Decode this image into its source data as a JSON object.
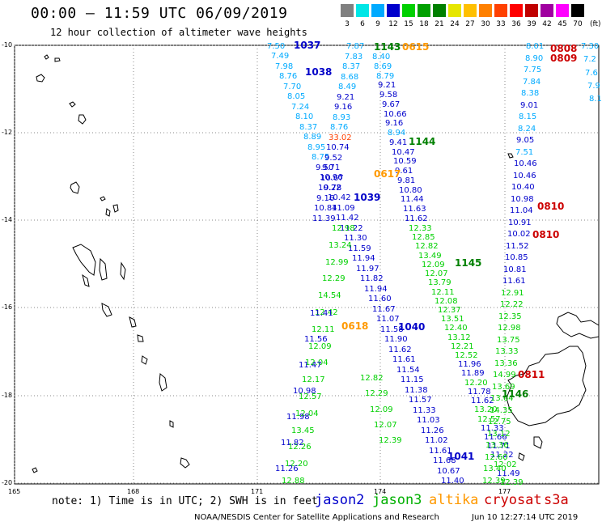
{
  "header": {
    "title": "00:00 – 11:59 UTC 06/09/2019",
    "subtitle": "12 hour collection of altimeter wave heights"
  },
  "scale": {
    "units": "(ft)",
    "bins": [
      {
        "label": "3",
        "color": "#808080"
      },
      {
        "label": "6",
        "color": "#00e6e6"
      },
      {
        "label": "9",
        "color": "#00aaff"
      },
      {
        "label": "12",
        "color": "#0000cc"
      },
      {
        "label": "15",
        "color": "#00d000"
      },
      {
        "label": "18",
        "color": "#00a000"
      },
      {
        "label": "21",
        "color": "#008000"
      },
      {
        "label": "24",
        "color": "#e6e600"
      },
      {
        "label": "27",
        "color": "#ffc000"
      },
      {
        "label": "30",
        "color": "#ff8000"
      },
      {
        "label": "33",
        "color": "#ff4000"
      },
      {
        "label": "36",
        "color": "#ff0000"
      },
      {
        "label": "39",
        "color": "#c00000"
      },
      {
        "label": "42",
        "color": "#a000a0"
      },
      {
        "label": "45",
        "color": "#ff00ff"
      },
      {
        "label": "70",
        "color": "#000000"
      }
    ]
  },
  "map": {
    "lat_labels": [
      "-10",
      "-12",
      "-14",
      "-16",
      "-18",
      "-20"
    ],
    "lon_labels": [
      "165",
      "168",
      "171",
      "174",
      "177"
    ],
    "grid": true,
    "pass_labels": [
      {
        "text": "1037",
        "color": "#0000c8"
      },
      {
        "text": "1038",
        "color": "#0000c8"
      },
      {
        "text": "1143",
        "color": "#008000"
      },
      {
        "text": "0615",
        "color": "#ff9900"
      },
      {
        "text": "1144",
        "color": "#008000"
      },
      {
        "text": "0617",
        "color": "#ff9900"
      },
      {
        "text": "1039",
        "color": "#0000c8"
      },
      {
        "text": "1145",
        "color": "#008000"
      },
      {
        "text": "0618",
        "color": "#ff9900"
      },
      {
        "text": "1040",
        "color": "#0000c8"
      },
      {
        "text": "1041",
        "color": "#0000c8"
      },
      {
        "text": "1146",
        "color": "#008000"
      },
      {
        "text": "0808",
        "color": "#cc0000"
      },
      {
        "text": "0809",
        "color": "#cc0000"
      },
      {
        "text": "0810",
        "color": "#cc0000"
      },
      {
        "text": "0810",
        "color": "#cc0000"
      },
      {
        "text": "0811",
        "color": "#cc0000"
      }
    ],
    "track_a": [
      {
        "v": "7.50",
        "c": "#00aaff"
      },
      {
        "v": "7.49",
        "c": "#00aaff"
      },
      {
        "v": "7.98",
        "c": "#00aaff"
      },
      {
        "v": "8.76",
        "c": "#00aaff"
      },
      {
        "v": "7.70",
        "c": "#00aaff"
      },
      {
        "v": "8.05",
        "c": "#00aaff"
      },
      {
        "v": "7.24",
        "c": "#00aaff"
      },
      {
        "v": "8.10",
        "c": "#00aaff"
      },
      {
        "v": "8.37",
        "c": "#00aaff"
      },
      {
        "v": "8.89",
        "c": "#00aaff"
      },
      {
        "v": "8.95",
        "c": "#00aaff"
      },
      {
        "v": "8.75",
        "c": "#00aaff"
      },
      {
        "v": "9.50",
        "c": "#0000cc"
      },
      {
        "v": "10.96",
        "c": "#0000cc"
      },
      {
        "v": "9.78",
        "c": "#0000cc"
      },
      {
        "v": "10.42",
        "c": "#0000cc"
      },
      {
        "v": "11.09",
        "c": "#0000cc"
      },
      {
        "v": "11.42",
        "c": "#0000cc"
      },
      {
        "v": "11.22",
        "c": "#0000cc"
      },
      {
        "v": "11.30",
        "c": "#0000cc"
      },
      {
        "v": "11.59",
        "c": "#0000cc"
      },
      {
        "v": "11.94",
        "c": "#0000cc"
      },
      {
        "v": "11.97",
        "c": "#0000cc"
      },
      {
        "v": "11.82",
        "c": "#0000cc"
      },
      {
        "v": "11.94",
        "c": "#0000cc"
      },
      {
        "v": "11.60",
        "c": "#0000cc"
      },
      {
        "v": "11.67",
        "c": "#0000cc"
      },
      {
        "v": "11.07",
        "c": "#0000cc"
      },
      {
        "v": "11.58",
        "c": "#0000cc"
      },
      {
        "v": "11.90",
        "c": "#0000cc"
      },
      {
        "v": "11.62",
        "c": "#0000cc"
      },
      {
        "v": "11.61",
        "c": "#0000cc"
      },
      {
        "v": "11.54",
        "c": "#0000cc"
      },
      {
        "v": "11.15",
        "c": "#0000cc"
      },
      {
        "v": "11.38",
        "c": "#0000cc"
      },
      {
        "v": "11.57",
        "c": "#0000cc"
      },
      {
        "v": "11.33",
        "c": "#0000cc"
      },
      {
        "v": "11.03",
        "c": "#0000cc"
      },
      {
        "v": "11.26",
        "c": "#0000cc"
      },
      {
        "v": "11.02",
        "c": "#0000cc"
      },
      {
        "v": "11.61",
        "c": "#0000cc"
      },
      {
        "v": "11.68",
        "c": "#0000cc"
      },
      {
        "v": "10.67",
        "c": "#0000cc"
      },
      {
        "v": "11.40",
        "c": "#0000cc"
      }
    ],
    "track_b": [
      {
        "v": "7.87",
        "c": "#00aaff"
      },
      {
        "v": "7.83",
        "c": "#00aaff"
      },
      {
        "v": "8.37",
        "c": "#00aaff"
      },
      {
        "v": "8.68",
        "c": "#00aaff"
      },
      {
        "v": "8.49",
        "c": "#00aaff"
      },
      {
        "v": "9.21",
        "c": "#0000cc"
      },
      {
        "v": "9.16",
        "c": "#0000cc"
      },
      {
        "v": "8.93",
        "c": "#00aaff"
      },
      {
        "v": "8.76",
        "c": "#00aaff"
      },
      {
        "v": "33.02",
        "c": "#ff4000"
      },
      {
        "v": "10.74",
        "c": "#0000cc"
      },
      {
        "v": "9.52",
        "c": "#0000cc"
      },
      {
        "v": "9.71",
        "c": "#0000cc"
      },
      {
        "v": "10.67",
        "c": "#0000cc"
      },
      {
        "v": "10.22",
        "c": "#0000cc"
      },
      {
        "v": "9.16",
        "c": "#0000cc"
      },
      {
        "v": "10.84",
        "c": "#0000cc"
      },
      {
        "v": "11.39",
        "c": "#0000cc"
      }
    ],
    "track_c": [
      {
        "v": "8.40",
        "c": "#00aaff"
      },
      {
        "v": "8.69",
        "c": "#00aaff"
      },
      {
        "v": "8.79",
        "c": "#00aaff"
      },
      {
        "v": "9.21",
        "c": "#0000cc"
      },
      {
        "v": "9.58",
        "c": "#0000cc"
      },
      {
        "v": "9.67",
        "c": "#0000cc"
      },
      {
        "v": "10.66",
        "c": "#0000cc"
      },
      {
        "v": "9.16",
        "c": "#0000cc"
      },
      {
        "v": "8.94",
        "c": "#00aaff"
      },
      {
        "v": "9.41",
        "c": "#0000cc"
      },
      {
        "v": "10.47",
        "c": "#0000cc"
      },
      {
        "v": "10.59",
        "c": "#0000cc"
      },
      {
        "v": "9.61",
        "c": "#0000cc"
      },
      {
        "v": "9.81",
        "c": "#0000cc"
      },
      {
        "v": "10.80",
        "c": "#0000cc"
      },
      {
        "v": "11.44",
        "c": "#0000cc"
      },
      {
        "v": "11.63",
        "c": "#0000cc"
      },
      {
        "v": "11.62",
        "c": "#0000cc"
      }
    ],
    "track_d": [
      {
        "v": "12.33",
        "c": "#00d000"
      },
      {
        "v": "12.85",
        "c": "#00d000"
      },
      {
        "v": "12.82",
        "c": "#00d000"
      },
      {
        "v": "13.49",
        "c": "#00d000"
      },
      {
        "v": "12.09",
        "c": "#00d000"
      },
      {
        "v": "12.07",
        "c": "#00d000"
      },
      {
        "v": "13.79",
        "c": "#00d000"
      },
      {
        "v": "12.11",
        "c": "#00d000"
      },
      {
        "v": "12.08",
        "c": "#00d000"
      },
      {
        "v": "12.37",
        "c": "#00d000"
      },
      {
        "v": "13.51",
        "c": "#00d000"
      },
      {
        "v": "12.40",
        "c": "#00d000"
      },
      {
        "v": "13.12",
        "c": "#00d000"
      },
      {
        "v": "12.21",
        "c": "#00d000"
      },
      {
        "v": "12.52",
        "c": "#00d000"
      },
      {
        "v": "11.96",
        "c": "#0000cc"
      },
      {
        "v": "11.89",
        "c": "#0000cc"
      },
      {
        "v": "12.20",
        "c": "#00d000"
      },
      {
        "v": "11.78",
        "c": "#0000cc"
      },
      {
        "v": "11.62",
        "c": "#0000cc"
      },
      {
        "v": "13.20",
        "c": "#00d000"
      },
      {
        "v": "12.57",
        "c": "#00d000"
      },
      {
        "v": "11.33",
        "c": "#0000cc"
      },
      {
        "v": "11.66",
        "c": "#0000cc"
      },
      {
        "v": "11.71",
        "c": "#0000cc"
      },
      {
        "v": "11.22",
        "c": "#0000cc"
      },
      {
        "v": "12.02",
        "c": "#00d000"
      },
      {
        "v": "11.49",
        "c": "#0000cc"
      },
      {
        "v": "12.39",
        "c": "#00d000"
      }
    ],
    "track_e": [
      {
        "v": "12.98",
        "c": "#00d000"
      },
      {
        "v": "13.24",
        "c": "#00d000"
      },
      {
        "v": "12.99",
        "c": "#00d000"
      },
      {
        "v": "12.29",
        "c": "#00d000"
      },
      {
        "v": "14.54",
        "c": "#00d000"
      },
      {
        "v": "12.42",
        "c": "#00d000"
      },
      {
        "v": "12.11",
        "c": "#00d000"
      },
      {
        "v": "12.09",
        "c": "#00d000"
      },
      {
        "v": "12.04",
        "c": "#00d000"
      },
      {
        "v": "12.17",
        "c": "#00d000"
      },
      {
        "v": "12.57",
        "c": "#00d000"
      },
      {
        "v": "12.04",
        "c": "#00d000"
      },
      {
        "v": "13.45",
        "c": "#00d000"
      },
      {
        "v": "12.26",
        "c": "#00d000"
      },
      {
        "v": "12.20",
        "c": "#00d000"
      },
      {
        "v": "12.88",
        "c": "#00d000"
      }
    ],
    "track_f": [
      {
        "v": "11.41",
        "c": "#0000cc"
      },
      {
        "v": "11.56",
        "c": "#0000cc"
      },
      {
        "v": "11.47",
        "c": "#0000cc"
      },
      {
        "v": "10.98",
        "c": "#0000cc"
      },
      {
        "v": "11.98",
        "c": "#0000cc"
      },
      {
        "v": "11.82",
        "c": "#0000cc"
      },
      {
        "v": "11.26",
        "c": "#0000cc"
      }
    ],
    "track_g": [
      {
        "v": "12.82",
        "c": "#00d000"
      },
      {
        "v": "12.29",
        "c": "#00d000"
      },
      {
        "v": "12.09",
        "c": "#00d000"
      },
      {
        "v": "12.07",
        "c": "#00d000"
      },
      {
        "v": "12.39",
        "c": "#00d000"
      }
    ],
    "track_h": [
      {
        "v": "8.01",
        "c": "#00aaff"
      },
      {
        "v": "8.90",
        "c": "#00aaff"
      },
      {
        "v": "7.75",
        "c": "#00aaff"
      },
      {
        "v": "7.84",
        "c": "#00aaff"
      },
      {
        "v": "8.38",
        "c": "#00aaff"
      },
      {
        "v": "9.01",
        "c": "#0000cc"
      },
      {
        "v": "8.15",
        "c": "#00aaff"
      },
      {
        "v": "8.24",
        "c": "#00aaff"
      },
      {
        "v": "9.05",
        "c": "#0000cc"
      },
      {
        "v": "7.51",
        "c": "#00aaff"
      },
      {
        "v": "10.46",
        "c": "#0000cc"
      },
      {
        "v": "10.46",
        "c": "#0000cc"
      },
      {
        "v": "10.40",
        "c": "#0000cc"
      },
      {
        "v": "10.98",
        "c": "#0000cc"
      },
      {
        "v": "11.04",
        "c": "#0000cc"
      },
      {
        "v": "10.91",
        "c": "#0000cc"
      },
      {
        "v": "10.02",
        "c": "#0000cc"
      },
      {
        "v": "11.52",
        "c": "#0000cc"
      },
      {
        "v": "10.85",
        "c": "#0000cc"
      },
      {
        "v": "10.81",
        "c": "#0000cc"
      },
      {
        "v": "11.61",
        "c": "#0000cc"
      },
      {
        "v": "12.91",
        "c": "#00d000"
      },
      {
        "v": "12.22",
        "c": "#00d000"
      },
      {
        "v": "12.35",
        "c": "#00d000"
      },
      {
        "v": "12.98",
        "c": "#00d000"
      },
      {
        "v": "13.75",
        "c": "#00d000"
      },
      {
        "v": "13.33",
        "c": "#00d000"
      },
      {
        "v": "13.36",
        "c": "#00d000"
      },
      {
        "v": "14.99",
        "c": "#00d000"
      },
      {
        "v": "13.69",
        "c": "#00d000"
      },
      {
        "v": "13.64",
        "c": "#00d000"
      },
      {
        "v": "14.35",
        "c": "#00d000"
      },
      {
        "v": "12.75",
        "c": "#00d000"
      },
      {
        "v": "13.12",
        "c": "#00d000"
      },
      {
        "v": "13.36",
        "c": "#00d000"
      },
      {
        "v": "12.60",
        "c": "#00d000"
      },
      {
        "v": "13.40",
        "c": "#00d000"
      },
      {
        "v": "12.39",
        "c": "#00d000"
      }
    ],
    "track_i": [
      {
        "v": "7.30",
        "c": "#00aaff"
      },
      {
        "v": "7.2",
        "c": "#00aaff"
      },
      {
        "v": "7.6",
        "c": "#00aaff"
      },
      {
        "v": "7.9",
        "c": "#00aaff"
      },
      {
        "v": "8.1",
        "c": "#00aaff"
      }
    ]
  },
  "footer": {
    "note": "note: 1) Time is in UTC; 2) SWH is in feet",
    "legend": [
      {
        "name": "jason2",
        "color": "#0000cc"
      },
      {
        "name": "jason3",
        "color": "#00b000"
      },
      {
        "name": "altika",
        "color": "#ff9900"
      },
      {
        "name": "cryosat",
        "color": "#cc0000"
      },
      {
        "name": "s3a",
        "color": "#cc0000"
      }
    ],
    "credit": "NOAA/NESDIS Center for Satellite Applications and Research",
    "timestamp": "Jun 10 12:27:14 UTC 2019"
  }
}
